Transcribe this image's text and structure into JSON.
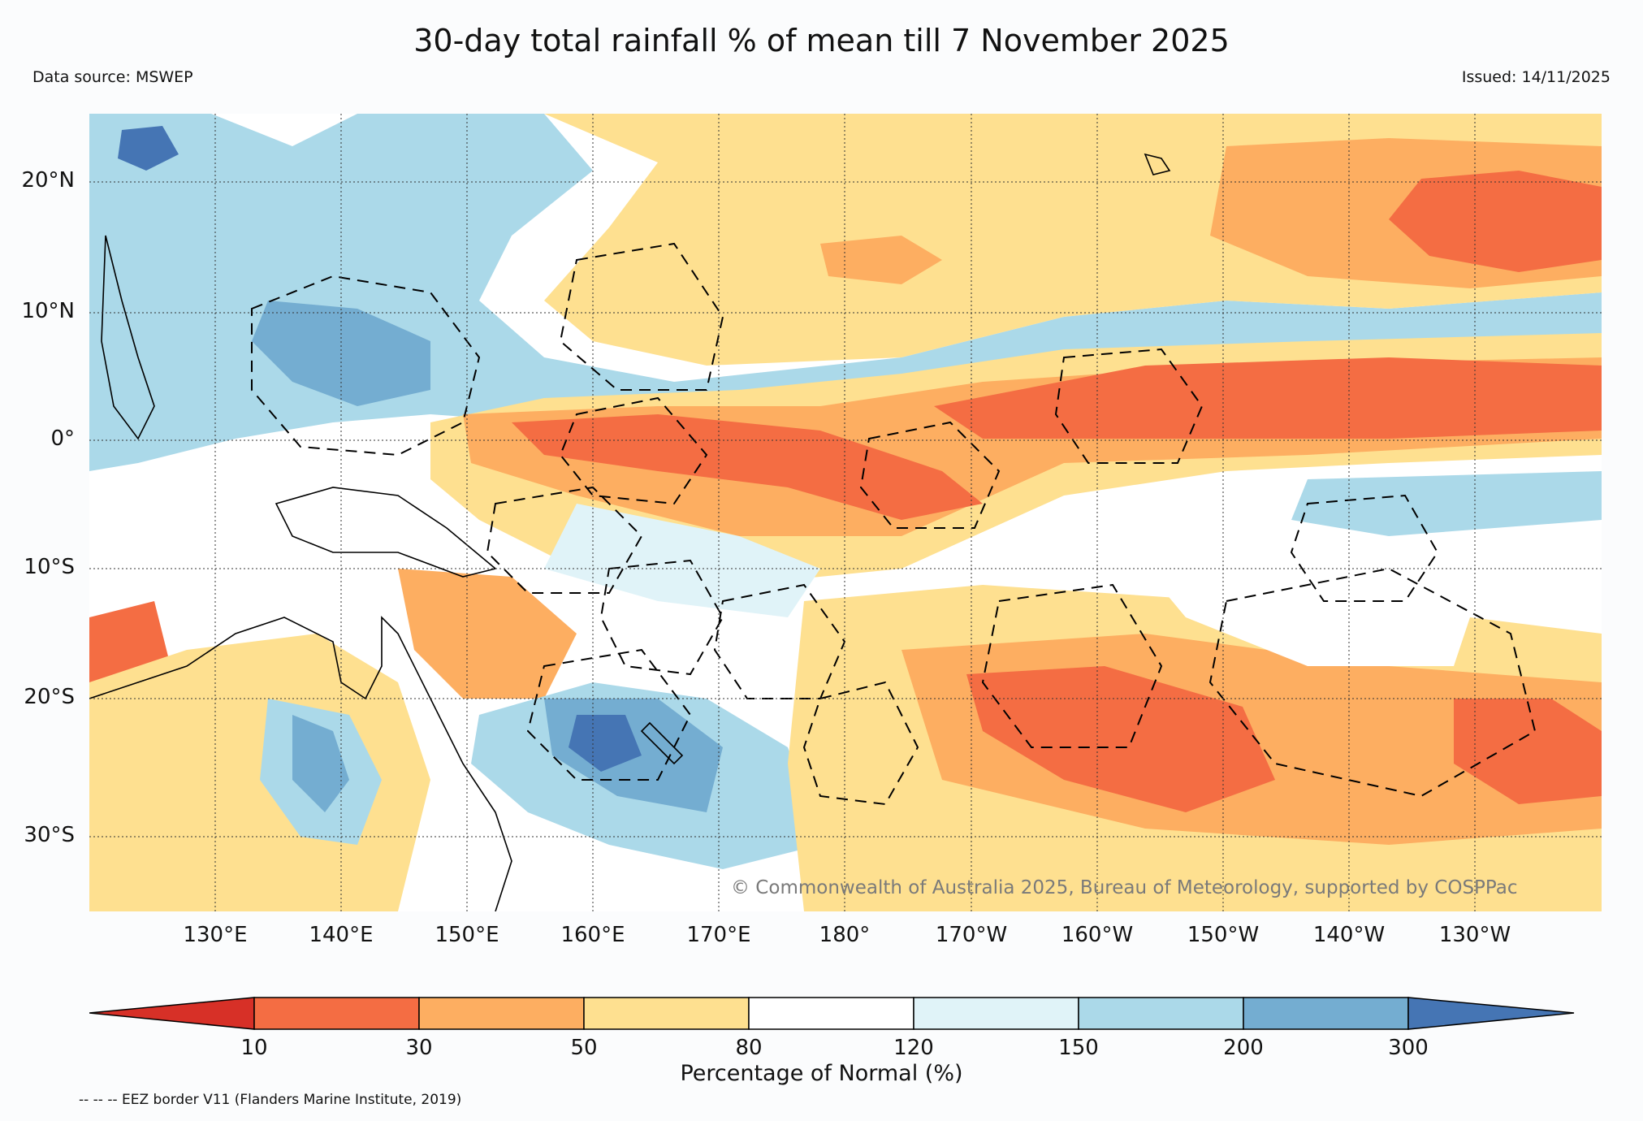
{
  "title": "30-day total rainfall % of mean till 7 November 2025",
  "source": "Data source: MSWEP",
  "issued": "Issued: 14/11/2025",
  "copyright": "© Commonwealth of Australia 2025, Bureau of Meteorology, supported by COSPPac",
  "lat_labels": [
    "20°N",
    "10°N",
    "0°",
    "10°S",
    "20°S",
    "30°S"
  ],
  "lon_labels": [
    "130°E",
    "140°E",
    "150°E",
    "160°E",
    "170°E",
    "180°",
    "170°W",
    "160°W",
    "150°W",
    "140°W",
    "130°W"
  ],
  "colorbar": {
    "title": "Percentage of Normal (%)",
    "ticks": [
      "10",
      "30",
      "50",
      "80",
      "120",
      "150",
      "200",
      "300"
    ],
    "colors": [
      "#d73027",
      "#f46d43",
      "#fdae61",
      "#fee090",
      "#ffffff",
      "#e0f3f8",
      "#abd9e9",
      "#74add1",
      "#4575b4"
    ]
  },
  "eez_note": "-- -- -- EEZ border V11 (Flanders Marine Institute, 2019)",
  "anomaly_colors": {
    "very_dry": "#d73027",
    "dry": "#f46d43",
    "below": "#fdae61",
    "slightly_below": "#fee090",
    "near_normal": "#ffffff",
    "slightly_above": "#e0f3f8",
    "above": "#abd9e9",
    "wet": "#74add1",
    "very_wet": "#4575b4"
  }
}
